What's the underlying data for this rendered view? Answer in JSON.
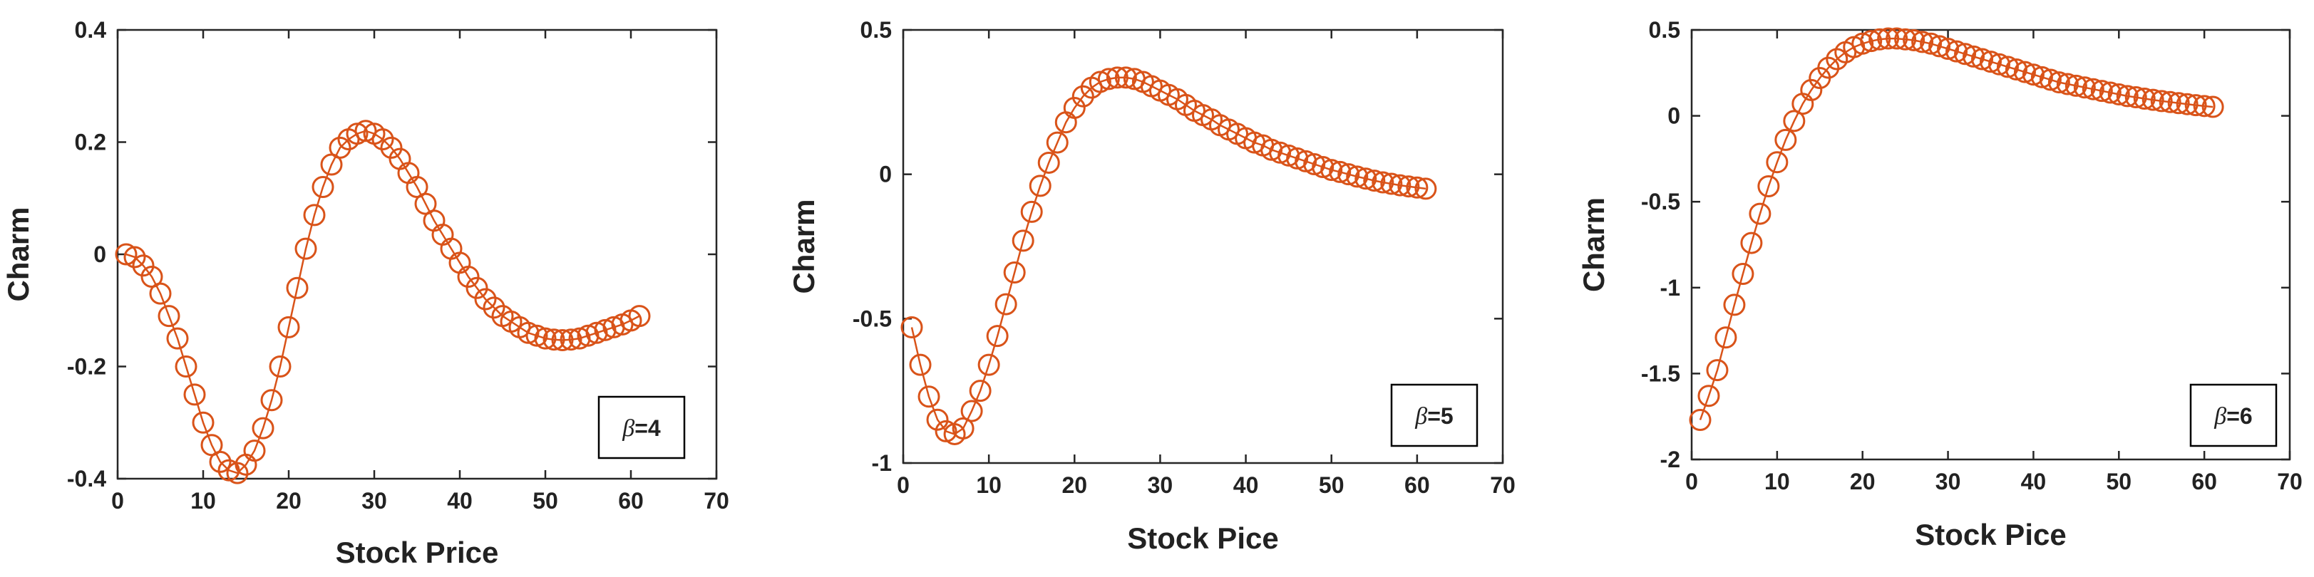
{
  "colors": {
    "series": "#d95319",
    "axes": "#262626"
  },
  "chart_data": [
    {
      "type": "line",
      "marker": "circle",
      "xlabel": "Stock Price",
      "ylabel": "Charm",
      "xlim": [
        0,
        70
      ],
      "ylim": [
        -0.4,
        0.4
      ],
      "xticks": [
        "0",
        "10",
        "20",
        "30",
        "40",
        "50",
        "60",
        "70"
      ],
      "yticks": [
        "-0.4",
        "-0.2",
        "0",
        "0.2",
        "0.4"
      ],
      "xtick_values": [
        0,
        10,
        20,
        30,
        40,
        50,
        60,
        70
      ],
      "ytick_values": [
        -0.4,
        -0.2,
        0,
        0.2,
        0.4
      ],
      "legend": {
        "symbol": "β",
        "text": "=4",
        "placement": "bottom-right"
      },
      "grid": false,
      "series": [
        {
          "x": [
            1,
            2,
            3,
            4,
            5,
            6,
            7,
            8,
            9,
            10,
            11,
            12,
            13,
            14,
            15,
            16,
            17,
            18,
            19,
            20,
            21,
            22,
            23,
            24,
            25,
            26,
            27,
            28,
            29,
            30,
            31,
            32,
            33,
            34,
            35,
            36,
            37,
            38,
            39,
            40,
            41,
            42,
            43,
            44,
            45,
            46,
            47,
            48,
            49,
            50,
            51,
            52,
            53,
            54,
            55,
            56,
            57,
            58,
            59,
            60,
            61
          ],
          "y": [
            0,
            -0.005,
            -0.02,
            -0.04,
            -0.07,
            -0.11,
            -0.15,
            -0.2,
            -0.25,
            -0.3,
            -0.34,
            -0.37,
            -0.385,
            -0.39,
            -0.375,
            -0.35,
            -0.31,
            -0.26,
            -0.2,
            -0.13,
            -0.06,
            0.01,
            0.07,
            0.12,
            0.16,
            0.19,
            0.205,
            0.215,
            0.22,
            0.215,
            0.205,
            0.19,
            0.17,
            0.145,
            0.12,
            0.09,
            0.06,
            0.035,
            0.01,
            -0.015,
            -0.04,
            -0.06,
            -0.08,
            -0.095,
            -0.11,
            -0.12,
            -0.13,
            -0.14,
            -0.145,
            -0.15,
            -0.152,
            -0.153,
            -0.152,
            -0.15,
            -0.145,
            -0.14,
            -0.135,
            -0.13,
            -0.125,
            -0.118,
            -0.11
          ]
        }
      ]
    },
    {
      "type": "line",
      "marker": "circle",
      "xlabel": "Stock Pice",
      "ylabel": "Charm",
      "xlim": [
        0,
        70
      ],
      "ylim": [
        -1,
        0.5
      ],
      "xticks": [
        "0",
        "10",
        "20",
        "30",
        "40",
        "50",
        "60",
        "70"
      ],
      "yticks": [
        "-1",
        "-0.5",
        "0",
        "0.5"
      ],
      "xtick_values": [
        0,
        10,
        20,
        30,
        40,
        50,
        60,
        70
      ],
      "ytick_values": [
        -1,
        -0.5,
        0,
        0.5
      ],
      "legend": {
        "symbol": "β",
        "text": "=5",
        "placement": "bottom-right"
      },
      "grid": false,
      "series": [
        {
          "x": [
            1,
            2,
            3,
            4,
            5,
            6,
            7,
            8,
            9,
            10,
            11,
            12,
            13,
            14,
            15,
            16,
            17,
            18,
            19,
            20,
            21,
            22,
            23,
            24,
            25,
            26,
            27,
            28,
            29,
            30,
            31,
            32,
            33,
            34,
            35,
            36,
            37,
            38,
            39,
            40,
            41,
            42,
            43,
            44,
            45,
            46,
            47,
            48,
            49,
            50,
            51,
            52,
            53,
            54,
            55,
            56,
            57,
            58,
            59,
            60,
            61
          ],
          "y": [
            -0.53,
            -0.66,
            -0.77,
            -0.85,
            -0.89,
            -0.9,
            -0.88,
            -0.82,
            -0.75,
            -0.66,
            -0.56,
            -0.45,
            -0.34,
            -0.23,
            -0.13,
            -0.04,
            0.04,
            0.11,
            0.18,
            0.23,
            0.27,
            0.3,
            0.32,
            0.33,
            0.335,
            0.335,
            0.33,
            0.32,
            0.305,
            0.29,
            0.275,
            0.26,
            0.24,
            0.22,
            0.205,
            0.19,
            0.17,
            0.155,
            0.14,
            0.125,
            0.11,
            0.1,
            0.085,
            0.075,
            0.065,
            0.055,
            0.045,
            0.035,
            0.025,
            0.015,
            0.008,
            0.0,
            -0.008,
            -0.015,
            -0.022,
            -0.028,
            -0.033,
            -0.038,
            -0.042,
            -0.046,
            -0.05
          ]
        }
      ]
    },
    {
      "type": "line",
      "marker": "circle",
      "xlabel": "Stock Pice",
      "ylabel": "Charm",
      "xlim": [
        0,
        70
      ],
      "ylim": [
        -2,
        0.5
      ],
      "xticks": [
        "0",
        "10",
        "20",
        "30",
        "40",
        "50",
        "60",
        "70"
      ],
      "yticks": [
        "-2",
        "-1.5",
        "-1",
        "-0.5",
        "0",
        "0.5"
      ],
      "xtick_values": [
        0,
        10,
        20,
        30,
        40,
        50,
        60,
        70
      ],
      "ytick_values": [
        -2,
        -1.5,
        -1,
        -0.5,
        0,
        0.5
      ],
      "legend": {
        "symbol": "β",
        "text": "=6",
        "placement": "bottom-right"
      },
      "grid": false,
      "series": [
        {
          "x": [
            1,
            2,
            3,
            4,
            5,
            6,
            7,
            8,
            9,
            10,
            11,
            12,
            13,
            14,
            15,
            16,
            17,
            18,
            19,
            20,
            21,
            22,
            23,
            24,
            25,
            26,
            27,
            28,
            29,
            30,
            31,
            32,
            33,
            34,
            35,
            36,
            37,
            38,
            39,
            40,
            41,
            42,
            43,
            44,
            45,
            46,
            47,
            48,
            49,
            50,
            51,
            52,
            53,
            54,
            55,
            56,
            57,
            58,
            59,
            60,
            61
          ],
          "y": [
            -1.77,
            -1.63,
            -1.48,
            -1.29,
            -1.1,
            -0.92,
            -0.74,
            -0.57,
            -0.41,
            -0.27,
            -0.14,
            -0.03,
            0.07,
            0.15,
            0.22,
            0.28,
            0.33,
            0.37,
            0.4,
            0.42,
            0.435,
            0.445,
            0.45,
            0.45,
            0.445,
            0.44,
            0.43,
            0.42,
            0.405,
            0.39,
            0.375,
            0.36,
            0.345,
            0.33,
            0.315,
            0.3,
            0.285,
            0.27,
            0.255,
            0.24,
            0.225,
            0.21,
            0.195,
            0.185,
            0.175,
            0.165,
            0.155,
            0.145,
            0.135,
            0.125,
            0.115,
            0.108,
            0.1,
            0.093,
            0.086,
            0.08,
            0.074,
            0.068,
            0.062,
            0.057,
            0.052
          ]
        }
      ]
    }
  ]
}
